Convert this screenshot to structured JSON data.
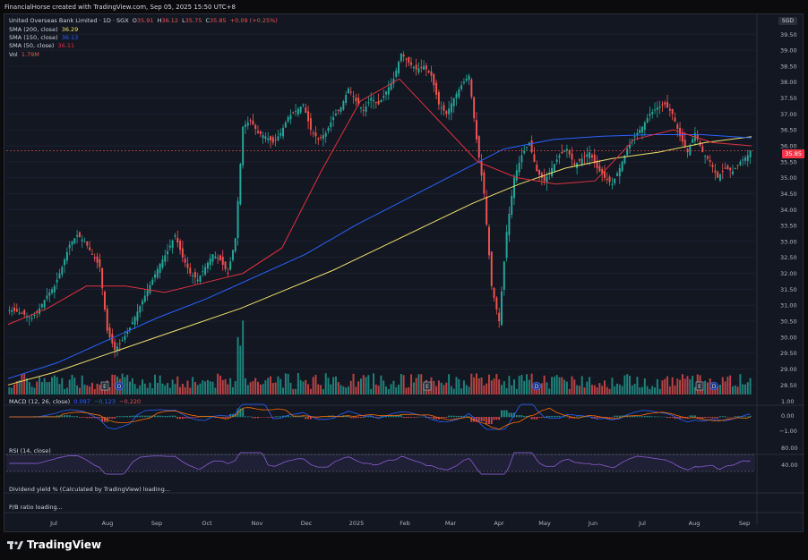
{
  "header": {
    "credit": "FinancialHorse created with TradingView.com, Sep 05, 2025 15:50 UTC+8"
  },
  "currency": "SGD",
  "legend": {
    "symbol": "United Overseas Bank Limited · 1D · SGX",
    "o_label": "O",
    "o_value": "35.91",
    "h_label": "H",
    "h_value": "36.12",
    "l_label": "L",
    "l_value": "35.75",
    "c_label": "C",
    "c_value": "35.85",
    "change": "+0.09 (+0.25%)",
    "sma200_label": "SMA (200, close)",
    "sma200_value": "36.29",
    "sma150_label": "SMA (150, close)",
    "sma150_value": "36.13",
    "sma50_label": "SMA (50, close)",
    "sma50_value": "36.11",
    "vol_label": "Vol",
    "vol_value": "1.79M"
  },
  "colors": {
    "up": "#26a69a",
    "down": "#ef5350",
    "sma200": "#f0e06b",
    "sma150": "#2962ff",
    "sma50": "#e0303f",
    "macd": "#2962ff",
    "signal": "#ff6d00",
    "rsi": "#7e57c2"
  },
  "last_price_badge": "35.85",
  "price_axis_labels": [
    "39.50",
    "39.00",
    "38.50",
    "38.00",
    "37.50",
    "37.00",
    "36.50",
    "36.00",
    "35.50",
    "35.00",
    "34.50",
    "34.00",
    "33.50",
    "33.00",
    "32.50",
    "32.00",
    "31.50",
    "31.00",
    "30.50",
    "30.00",
    "29.50",
    "29.00",
    "28.50"
  ],
  "event_markers": [
    {
      "type": "earnings",
      "label": "E"
    },
    {
      "type": "dividend",
      "label": "D"
    }
  ],
  "macd": {
    "label": "MACD (12, 26, close)",
    "v1": "0.097",
    "v2": "−0.123",
    "v3": "−0.220",
    "axis": [
      "1.00",
      "0.00",
      "−1.00"
    ]
  },
  "rsi": {
    "label": "RSI (14, close)",
    "axis": [
      "80.00",
      "40.00"
    ]
  },
  "extra_panes": [
    "Dividend yield % (Calculated by TradingView) loading...",
    "P/B ratio loading..."
  ],
  "time_axis": [
    "Jul",
    "Aug",
    "Sep",
    "Oct",
    "Nov",
    "Dec",
    "2025",
    "Feb",
    "Mar",
    "Apr",
    "May",
    "Jun",
    "Jul",
    "Aug",
    "Sep"
  ],
  "footer": {
    "brand": "TradingView"
  },
  "chart_data": {
    "type": "candlestick",
    "symbol": "UOB SGX 1D",
    "y_range": [
      28.2,
      39.9
    ],
    "x_months": [
      "Jul",
      "Aug",
      "Sep",
      "Oct",
      "Nov",
      "Dec",
      "2025",
      "Feb",
      "Mar",
      "Apr",
      "May",
      "Jun",
      "Jul",
      "Aug",
      "Sep"
    ],
    "close_path": [
      30.85,
      30.8,
      30.7,
      30.6,
      30.9,
      31.3,
      31.6,
      32.2,
      32.9,
      33.2,
      33.0,
      32.6,
      32.2,
      30.2,
      29.6,
      29.9,
      30.3,
      30.8,
      31.3,
      31.8,
      32.3,
      32.7,
      33.2,
      32.5,
      32.0,
      31.8,
      32.2,
      32.6,
      32.4,
      32.0,
      33.1,
      36.6,
      36.8,
      36.4,
      36.3,
      36.1,
      36.4,
      36.9,
      37.1,
      37.3,
      36.5,
      36.2,
      36.4,
      36.9,
      37.2,
      37.8,
      37.4,
      37.1,
      37.5,
      37.3,
      37.7,
      38.1,
      38.9,
      38.6,
      38.4,
      38.5,
      38.2,
      37.3,
      37.0,
      37.5,
      37.9,
      38.2,
      36.2,
      34.5,
      31.6,
      30.5,
      33.3,
      35.0,
      35.7,
      36.1,
      35.2,
      34.9,
      35.3,
      35.7,
      35.9,
      35.4,
      35.6,
      35.8,
      35.3,
      35.0,
      34.8,
      35.3,
      35.9,
      36.3,
      36.6,
      37.0,
      37.2,
      37.3,
      37.0,
      36.3,
      35.8,
      36.4,
      35.8,
      35.5,
      35.0,
      35.3,
      35.2,
      35.5,
      35.7,
      35.85
    ],
    "sma50": [
      30.4,
      30.9,
      31.6,
      31.6,
      31.4,
      31.7,
      32.0,
      32.8,
      35.2,
      37.4,
      38.1,
      36.8,
      35.5,
      35.0,
      34.8,
      34.9,
      36.2,
      36.5,
      36.1,
      36.0
    ],
    "sma150": [
      28.7,
      29.2,
      29.9,
      30.6,
      31.2,
      31.9,
      32.6,
      33.5,
      34.3,
      35.1,
      35.9,
      36.2,
      36.3,
      36.35,
      36.35,
      36.25
    ],
    "sma200": [
      28.5,
      28.9,
      29.4,
      29.9,
      30.4,
      30.9,
      31.5,
      32.1,
      32.8,
      33.5,
      34.2,
      34.8,
      35.3,
      35.6,
      35.8,
      36.1,
      36.29
    ],
    "volume_note": "volume histogram at bottom of price pane",
    "macd_last": 0.097,
    "rsi_range": [
      40,
      80
    ]
  }
}
